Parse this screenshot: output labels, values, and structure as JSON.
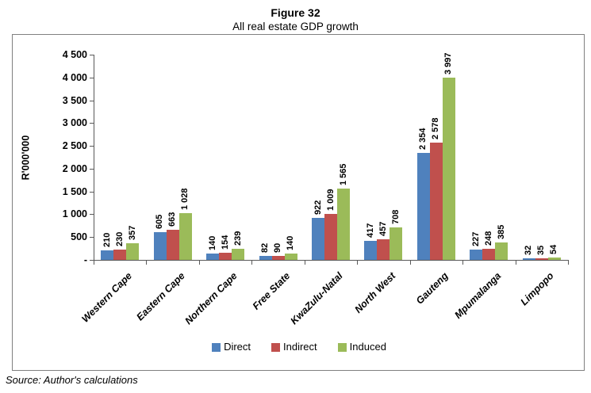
{
  "figure": {
    "title": "Figure 32",
    "subtitle": "All real estate GDP growth",
    "source": "Source: Author's calculations"
  },
  "chart_data": {
    "type": "bar",
    "categories": [
      "Western Cape",
      "Eastern Cape",
      "Northern Cape",
      "Free State",
      "KwaZulu-Natal",
      "North West",
      "Gauteng",
      "Mpumalanga",
      "Limpopo"
    ],
    "series": [
      {
        "name": "Direct",
        "color": "#4F81BD",
        "values": [
          210,
          605,
          140,
          82,
          922,
          417,
          2354,
          227,
          32
        ]
      },
      {
        "name": "Indirect",
        "color": "#C0504D",
        "values": [
          230,
          663,
          154,
          90,
          1009,
          457,
          2578,
          248,
          35
        ]
      },
      {
        "name": "Induced",
        "color": "#9BBB59",
        "values": [
          357,
          1028,
          239,
          140,
          1565,
          708,
          3997,
          385,
          54
        ]
      }
    ],
    "data_labels": [
      [
        "210",
        "605",
        "140",
        "82",
        "922",
        "417",
        "2 354",
        "227",
        "32"
      ],
      [
        "230",
        "663",
        "154",
        "90",
        "1 009",
        "457",
        "2 578",
        "248",
        "35"
      ],
      [
        "357",
        "1 028",
        "239",
        "140",
        "1 565",
        "708",
        "3 997",
        "385",
        "54"
      ]
    ],
    "title": "",
    "xlabel": "",
    "ylabel": "R'000'000",
    "ylim": [
      0,
      4500
    ],
    "ytick_step": 500,
    "ytick_labels": [
      "-",
      "500",
      "1 000",
      "1 500",
      "2 000",
      "2 500",
      "3 000",
      "3 500",
      "4 000",
      "4 500"
    ],
    "grid": false,
    "legend_position": "bottom",
    "axis_color": "#595959",
    "frame_border_color": "#808080"
  }
}
